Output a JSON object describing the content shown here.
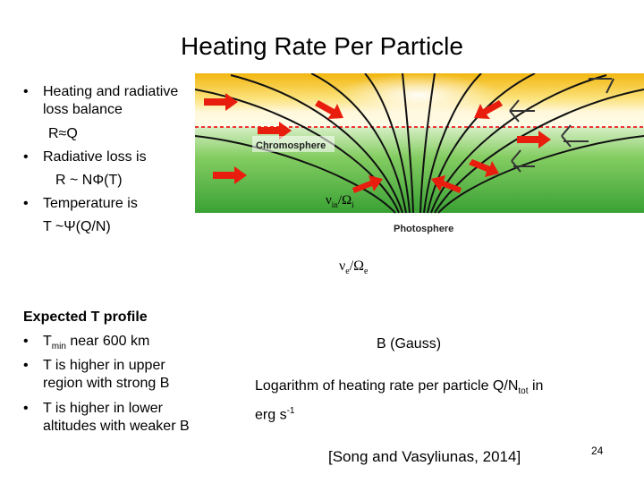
{
  "title": "Heating Rate Per Particle",
  "bullets_top": [
    {
      "text": "Heating and radiative loss balance",
      "line1": "Heating and radiative",
      "line2": "loss balance"
    },
    {
      "indent": "R≈Q"
    },
    {
      "text": "Radiative loss is"
    },
    {
      "indent": "R ~ NΦ(T)"
    },
    {
      "text": "Temperature is"
    },
    {
      "indent": "T ~Ψ(Q/N)"
    }
  ],
  "figure": {
    "chromosphere_label": "Chromosphere",
    "photosphere_label": "Photosphere",
    "ratio_in_label_main": "ν",
    "ratio_in_label_sub": "in",
    "ratio_in_label_div": "/Ω",
    "ratio_in_label_sub2": "i",
    "colors": {
      "sky_top": "#f6c21a",
      "sky_light": "#fff6c8",
      "green": "#5dbb3f",
      "arrow": "#e81d0e"
    }
  },
  "ratio_e": {
    "main": "ν",
    "sub": "e",
    "div": "/Ω",
    "sub2": "e"
  },
  "expected": {
    "heading": "Expected T profile",
    "items": [
      {
        "pre": "T",
        "sub": "min",
        "post": " near 600 km"
      },
      {
        "l1": "T is higher in upper",
        "l2": "region with strong B"
      },
      {
        "l1": "T is higher in lower",
        "l2": "altitudes with weaker B"
      }
    ]
  },
  "b_label": "B (Gauss)",
  "caption": {
    "l1_pre": "Logarithm of heating rate per particle Q/N",
    "l1_sub": "tot",
    "l1_post": " in",
    "l2_pre": "erg s",
    "l2_sup": "-1"
  },
  "citation": "[Song and Vasyliunas, 2014]",
  "page_number": "24",
  "bullet_char": "•"
}
